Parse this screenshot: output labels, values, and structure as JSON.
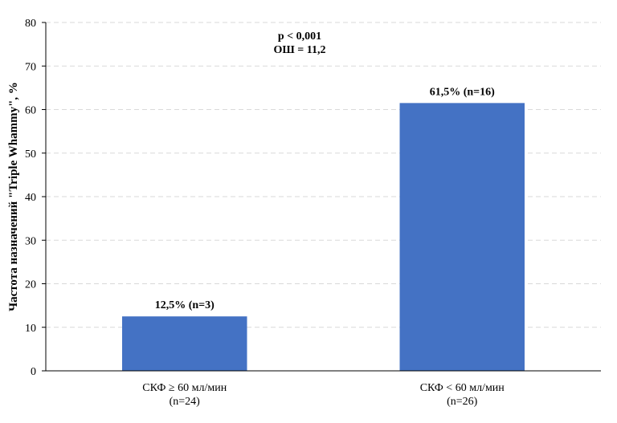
{
  "chart_data": {
    "type": "bar",
    "categories": [
      [
        "СКФ ≥ 60 мл/мин",
        "(n=24)"
      ],
      [
        "СКФ < 60 мл/мин",
        "(n=26)"
      ]
    ],
    "values": [
      12.5,
      61.5
    ],
    "data_labels": [
      "12,5% (n=3)",
      "61,5% (n=16)"
    ],
    "ylabel": "Частота назначений \"Triple Whammy\", %",
    "xlabel": "",
    "ylim": [
      0,
      80
    ],
    "yticks": [
      0,
      10,
      20,
      30,
      40,
      50,
      60,
      70,
      80
    ],
    "grid": "horizontal-dashed",
    "annotations": [
      "p < 0,001",
      "ОШ = 11,2"
    ],
    "colors": {
      "bar": "#4472C4",
      "grid": "#d9d9d9",
      "axis": "#000000"
    }
  }
}
